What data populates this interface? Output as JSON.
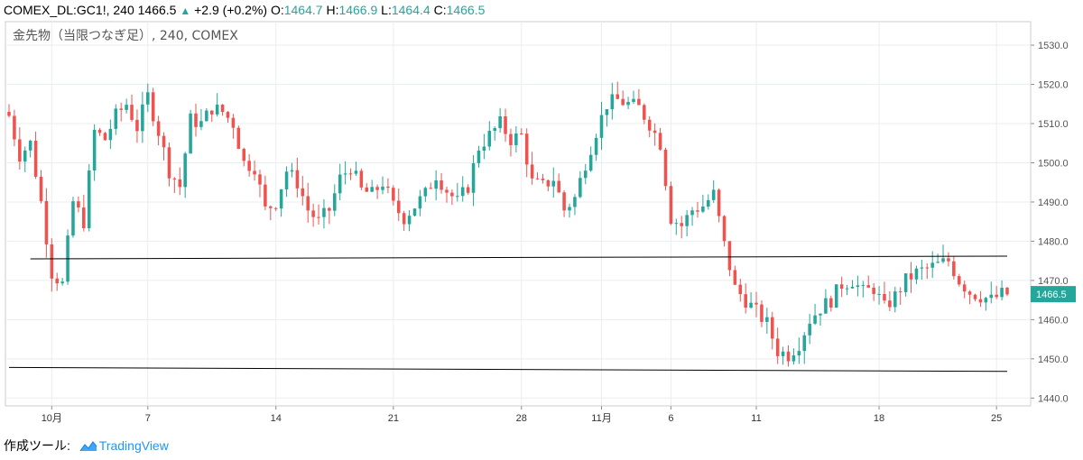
{
  "header": {
    "symbol": "COMEX_DL:GC1!, 240",
    "last": "1466.5",
    "change_arrow": "▲",
    "change": "+2.9 (+0.2%)",
    "o_label": "O:",
    "o_val": "1464.7",
    "h_label": "H:",
    "h_val": "1466.9",
    "l_label": "L:",
    "l_val": "1464.4",
    "c_label": "C:",
    "c_val": "1466.5"
  },
  "footer": {
    "made_with": "作成ツール:",
    "brand": "TradingView"
  },
  "colors": {
    "up": "#26a69a",
    "down": "#ef5350",
    "grid": "#e9eef2",
    "axis_text": "#555555",
    "trendline": "#000000"
  },
  "chart_data": {
    "type": "candlestick",
    "title": "金先物（当限つなぎ足）, 240, COMEX",
    "ylim": [
      1438,
      1536
    ],
    "y_ticks": [
      "1440.0",
      "1450.0",
      "1460.0",
      "1470.0",
      "1480.0",
      "1490.0",
      "1500.0",
      "1510.0",
      "1520.0",
      "1530.0"
    ],
    "y_tick_values": [
      1440,
      1450,
      1460,
      1470,
      1480,
      1490,
      1500,
      1510,
      1520,
      1530
    ],
    "x_range": [
      0,
      187
    ],
    "x_ticks": [
      {
        "label": "10月",
        "x": 8
      },
      {
        "label": "7",
        "x": 26
      },
      {
        "label": "14",
        "x": 50
      },
      {
        "label": "21",
        "x": 72
      },
      {
        "label": "28",
        "x": 96
      },
      {
        "label": "11月",
        "x": 111
      },
      {
        "label": "6",
        "x": 124
      },
      {
        "label": "11",
        "x": 140
      },
      {
        "label": "18",
        "x": 163
      },
      {
        "label": "25",
        "x": 185
      }
    ],
    "last_price_label": "1466.5",
    "trendlines": [
      {
        "x1": 4,
        "y1": 1475.5,
        "x2": 187,
        "y2": 1476.2
      },
      {
        "x1": 0,
        "y1": 1447.8,
        "x2": 187,
        "y2": 1446.8
      }
    ],
    "anchors": [
      [
        0,
        1512
      ],
      [
        2,
        1502
      ],
      [
        4,
        1505
      ],
      [
        6,
        1490
      ],
      [
        8,
        1472
      ],
      [
        10,
        1469
      ],
      [
        12,
        1490
      ],
      [
        14,
        1485
      ],
      [
        16,
        1508
      ],
      [
        18,
        1506
      ],
      [
        20,
        1512
      ],
      [
        22,
        1515
      ],
      [
        24,
        1509
      ],
      [
        26,
        1517
      ],
      [
        28,
        1508
      ],
      [
        30,
        1498
      ],
      [
        32,
        1494
      ],
      [
        34,
        1511
      ],
      [
        36,
        1510
      ],
      [
        38,
        1514
      ],
      [
        40,
        1513
      ],
      [
        42,
        1510
      ],
      [
        44,
        1500
      ],
      [
        46,
        1499
      ],
      [
        48,
        1488
      ],
      [
        50,
        1490
      ],
      [
        52,
        1498
      ],
      [
        54,
        1495
      ],
      [
        56,
        1488
      ],
      [
        58,
        1485
      ],
      [
        60,
        1488
      ],
      [
        62,
        1496
      ],
      [
        64,
        1499
      ],
      [
        66,
        1493
      ],
      [
        68,
        1492
      ],
      [
        70,
        1495
      ],
      [
        72,
        1489
      ],
      [
        74,
        1486
      ],
      [
        76,
        1489
      ],
      [
        78,
        1492
      ],
      [
        80,
        1497
      ],
      [
        82,
        1493
      ],
      [
        84,
        1490
      ],
      [
        86,
        1494
      ],
      [
        88,
        1504
      ],
      [
        90,
        1507
      ],
      [
        92,
        1510
      ],
      [
        94,
        1506
      ],
      [
        96,
        1507
      ],
      [
        98,
        1495
      ],
      [
        100,
        1494
      ],
      [
        102,
        1496
      ],
      [
        104,
        1488
      ],
      [
        106,
        1491
      ],
      [
        108,
        1500
      ],
      [
        110,
        1508
      ],
      [
        112,
        1515
      ],
      [
        114,
        1516
      ],
      [
        116,
        1515
      ],
      [
        118,
        1514
      ],
      [
        120,
        1510
      ],
      [
        122,
        1505
      ],
      [
        124,
        1486
      ],
      [
        126,
        1484
      ],
      [
        128,
        1488
      ],
      [
        130,
        1489
      ],
      [
        132,
        1492
      ],
      [
        134,
        1479
      ],
      [
        136,
        1468
      ],
      [
        138,
        1465
      ],
      [
        140,
        1462
      ],
      [
        142,
        1459
      ],
      [
        144,
        1452
      ],
      [
        146,
        1451
      ],
      [
        148,
        1454
      ],
      [
        150,
        1460
      ],
      [
        152,
        1463
      ],
      [
        154,
        1465
      ],
      [
        156,
        1469
      ],
      [
        158,
        1470
      ],
      [
        160,
        1467
      ],
      [
        162,
        1468
      ],
      [
        164,
        1463
      ],
      [
        166,
        1466
      ],
      [
        168,
        1470
      ],
      [
        170,
        1472
      ],
      [
        172,
        1473
      ],
      [
        174,
        1474
      ],
      [
        176,
        1475
      ],
      [
        178,
        1470
      ],
      [
        180,
        1467
      ],
      [
        182,
        1466
      ],
      [
        184,
        1465
      ],
      [
        186,
        1466.5
      ]
    ]
  }
}
